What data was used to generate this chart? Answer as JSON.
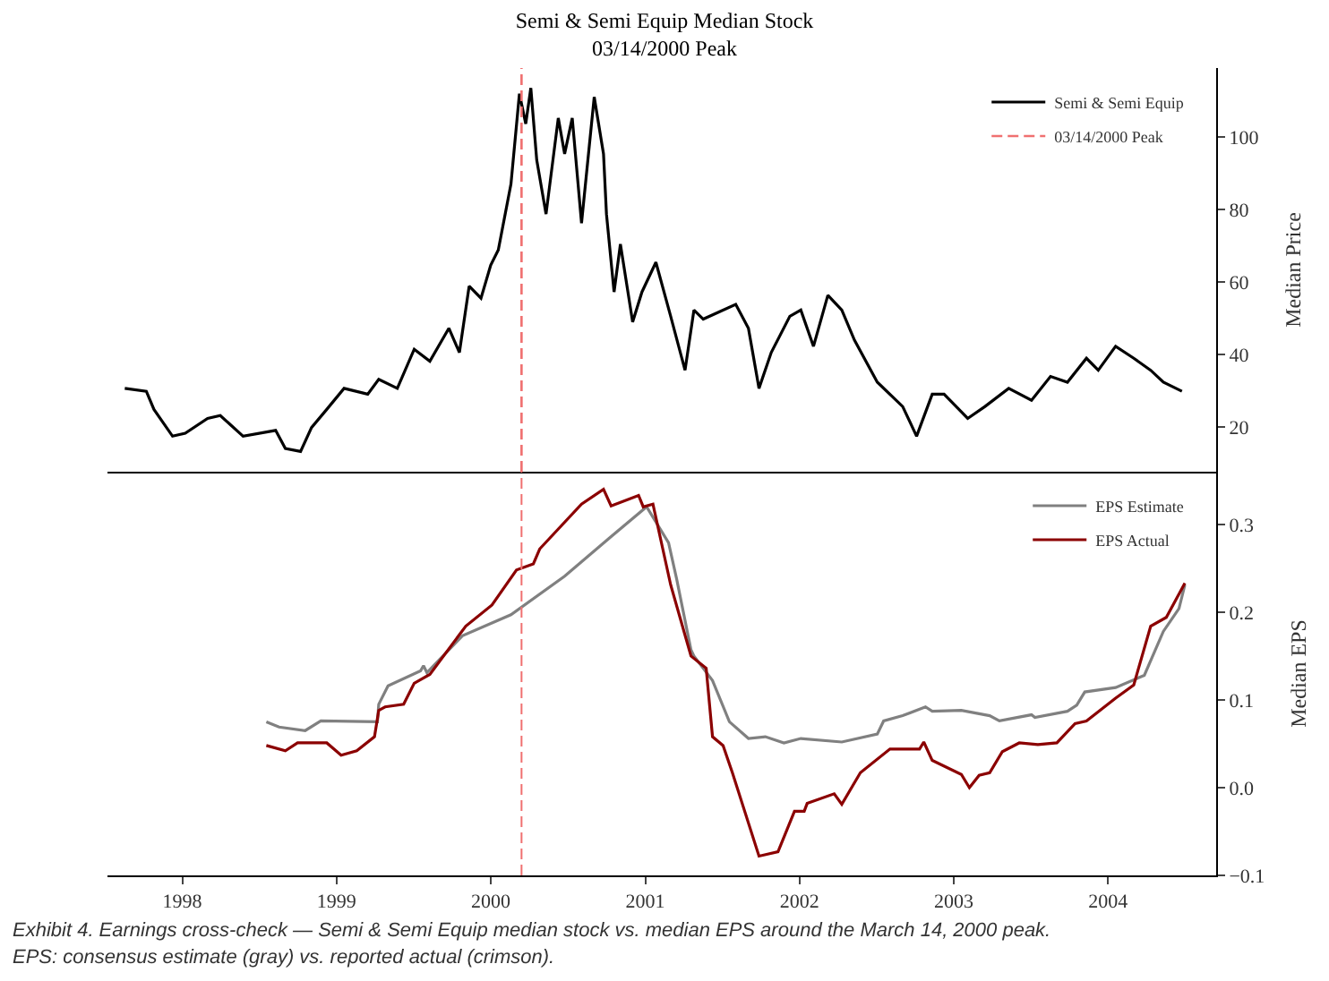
{
  "chart_data": [
    {
      "type": "line",
      "title": "Semi & Semi Equip Median Stock",
      "subtitle": "03/14/2000 Peak",
      "ylabel": "Median Price",
      "xlim": [
        "1997-07-08",
        "2004-09-13"
      ],
      "ylim": [
        7.6,
        119
      ],
      "yticks": [
        20,
        40,
        60,
        80,
        100
      ],
      "tick_labels": "y",
      "legend": "top right",
      "marker": "none",
      "series": [
        {
          "name": "Semi & Semi Equip",
          "color": "#000000",
          "x": [
            "1997-08-18",
            "1997-10-08",
            "1997-10-26",
            "1997-12-09",
            "1998-01-08",
            "1998-03-02",
            "1998-04-01",
            "1998-05-25",
            "1998-08-10",
            "1998-09-02",
            "1998-10-08",
            "1998-11-03",
            "1998-12-09",
            "1999-01-19",
            "1999-03-16",
            "1999-04-11",
            "1999-05-25",
            "1999-07-04",
            "1999-08-10",
            "1999-09-24",
            "1999-10-19",
            "1999-11-11",
            "1999-12-09",
            "2000-01-01",
            "2000-01-19",
            "2000-02-18",
            "2000-03-09",
            "2000-03-24",
            "2000-04-05",
            "2000-04-19",
            "2000-05-11",
            "2000-06-09",
            "2000-06-24",
            "2000-07-12",
            "2000-08-03",
            "2000-09-02",
            "2000-09-24",
            "2000-10-01",
            "2000-10-19",
            "2000-11-03",
            "2000-12-02",
            "2000-12-24",
            "2001-01-26",
            "2001-03-02",
            "2001-04-05",
            "2001-04-26",
            "2001-05-18",
            "2001-08-03",
            "2001-09-02",
            "2001-09-27",
            "2001-10-26",
            "2001-12-09",
            "2002-01-04",
            "2002-02-03",
            "2002-03-09",
            "2002-04-11",
            "2002-05-11",
            "2002-07-04",
            "2002-09-02",
            "2002-10-05",
            "2002-11-11",
            "2002-12-09",
            "2003-02-03",
            "2003-03-16",
            "2003-05-11",
            "2003-07-04",
            "2003-08-18",
            "2003-09-27",
            "2003-11-11",
            "2003-12-09",
            "2004-01-19",
            "2004-03-02",
            "2004-04-11",
            "2004-05-11",
            "2004-06-24"
          ],
          "values": [
            30.6,
            29.8,
            24.8,
            17.4,
            18.2,
            22.3,
            23.1,
            17.4,
            19.0,
            14.0,
            13.2,
            19.8,
            24.8,
            30.6,
            29.0,
            33.1,
            30.6,
            41.4,
            38.1,
            47.2,
            40.5,
            58.8,
            55.5,
            64.6,
            68.8,
            87.0,
            111.9,
            103.6,
            113.5,
            93.6,
            78.7,
            105.2,
            95.3,
            105.2,
            76.2,
            111.0,
            95.3,
            78.7,
            57.2,
            70.4,
            48.9,
            57.2,
            65.4,
            50.5,
            35.6,
            52.2,
            49.7,
            53.8,
            47.2,
            30.6,
            40.5,
            50.5,
            52.2,
            42.2,
            56.3,
            52.2,
            43.9,
            32.3,
            25.6,
            17.4,
            29.0,
            29.0,
            22.3,
            25.6,
            30.6,
            27.3,
            33.9,
            32.3,
            38.9,
            35.6,
            42.2,
            38.9,
            35.6,
            32.3,
            29.8
          ]
        },
        {
          "name": "03/14/2000 Peak",
          "color": "#f07070",
          "line_style": "dashed",
          "x": [
            "2000-03-14",
            "2000-03-14"
          ],
          "values": [
            7.6,
            119
          ]
        }
      ]
    },
    {
      "type": "line",
      "ylabel": "Median EPS",
      "xlim": [
        "1997-07-08",
        "2004-09-13"
      ],
      "xticks": [
        {
          "value": "1998-01-01",
          "label": "1998"
        },
        {
          "value": "1999-01-01",
          "label": "1999"
        },
        {
          "value": "2000-01-01",
          "label": "2000"
        },
        {
          "value": "2001-01-01",
          "label": "2001"
        },
        {
          "value": "2002-01-01",
          "label": "2002"
        },
        {
          "value": "2003-01-01",
          "label": "2003"
        },
        {
          "value": "2004-01-01",
          "label": "2004"
        }
      ],
      "ylim": [
        -0.1,
        0.36
      ],
      "yticks": [
        {
          "value": -0.1,
          "label": "−0.1"
        },
        {
          "value": 0,
          "label": "0.0"
        },
        0.1,
        0.2,
        0.3
      ],
      "legend": "top right",
      "marker": "none",
      "series": [
        {
          "name": "EPS Estimate",
          "color": "#808080",
          "x": [
            "1998-07-19",
            "1998-08-18",
            "1998-10-19",
            "1998-11-25",
            "1999-04-08",
            "1999-04-11",
            "1999-05-03",
            "1999-07-19",
            "1999-07-26",
            "1999-08-03",
            "1999-10-26",
            "2000-02-18",
            "2000-06-24",
            "2000-10-12",
            "2001-01-04",
            "2001-02-25",
            "2001-03-16",
            "2001-04-19",
            "2001-04-26",
            "2001-06-09",
            "2001-07-19",
            "2001-09-02",
            "2001-10-12",
            "2001-11-25",
            "2002-01-04",
            "2002-04-11",
            "2002-07-04",
            "2002-07-19",
            "2002-09-02",
            "2002-10-26",
            "2002-11-11",
            "2003-01-19",
            "2003-03-27",
            "2003-04-19",
            "2003-07-04",
            "2003-07-12",
            "2003-09-27",
            "2003-10-19",
            "2003-11-07",
            "2004-01-19",
            "2004-03-27",
            "2004-05-11",
            "2004-06-17",
            "2004-07-01"
          ],
          "values": [
            0.075,
            0.069,
            0.065,
            0.076,
            0.075,
            0.095,
            0.116,
            0.133,
            0.139,
            0.131,
            0.173,
            0.197,
            0.241,
            0.286,
            0.32,
            0.279,
            0.238,
            0.157,
            0.15,
            0.122,
            0.075,
            0.056,
            0.058,
            0.051,
            0.056,
            0.052,
            0.061,
            0.076,
            0.082,
            0.092,
            0.087,
            0.088,
            0.082,
            0.076,
            0.083,
            0.08,
            0.087,
            0.094,
            0.109,
            0.114,
            0.128,
            0.178,
            0.204,
            0.231
          ]
        },
        {
          "name": "EPS Actual",
          "color": "#8b0000",
          "x": [
            "1998-07-19",
            "1998-09-02",
            "1998-10-01",
            "1998-12-09",
            "1999-01-12",
            "1999-02-18",
            "1999-04-01",
            "1999-04-11",
            "1999-04-26",
            "1999-06-09",
            "1999-07-04",
            "1999-08-10",
            "1999-11-03",
            "2000-01-04",
            "2000-03-02",
            "2000-04-11",
            "2000-04-26",
            "2000-08-03",
            "2000-09-24",
            "2000-10-12",
            "2000-12-16",
            "2000-12-27",
            "2001-01-19",
            "2001-03-02",
            "2001-04-19",
            "2001-05-25",
            "2001-06-09",
            "2001-07-04",
            "2001-07-26",
            "2001-09-27",
            "2001-11-11",
            "2001-12-20",
            "2002-01-12",
            "2002-01-19",
            "2002-03-24",
            "2002-04-11",
            "2002-05-25",
            "2002-08-03",
            "2002-10-12",
            "2002-10-22",
            "2002-11-11",
            "2003-01-19",
            "2003-02-07",
            "2003-03-02",
            "2003-03-27",
            "2003-04-26",
            "2003-06-05",
            "2003-07-19",
            "2003-09-02",
            "2003-10-15",
            "2003-11-11",
            "2004-01-19",
            "2004-03-02",
            "2004-04-11",
            "2004-05-18",
            "2004-07-01"
          ],
          "values": [
            0.048,
            0.042,
            0.051,
            0.051,
            0.037,
            0.042,
            0.058,
            0.088,
            0.092,
            0.095,
            0.119,
            0.129,
            0.184,
            0.208,
            0.248,
            0.255,
            0.272,
            0.323,
            0.34,
            0.321,
            0.333,
            0.32,
            0.323,
            0.231,
            0.15,
            0.136,
            0.058,
            0.048,
            0.017,
            -0.078,
            -0.073,
            -0.027,
            -0.027,
            -0.018,
            -0.007,
            -0.019,
            0.017,
            0.044,
            0.044,
            0.052,
            0.031,
            0.015,
            0.0,
            0.014,
            0.017,
            0.041,
            0.051,
            0.049,
            0.051,
            0.073,
            0.076,
            0.102,
            0.117,
            0.184,
            0.194,
            0.233
          ]
        }
      ],
      "ref_lines": [
        {
          "axis": "x",
          "value": "2000-03-14",
          "color": "#f07070",
          "line_style": "dashed"
        }
      ],
      "annotations": [
        "Exhibit 4. Earnings cross-check — Semi & Semi Equip median stock vs. median EPS around the March 14, 2000 peak.",
        "EPS: consensus estimate (gray) vs. reported actual (crimson)."
      ]
    }
  ]
}
